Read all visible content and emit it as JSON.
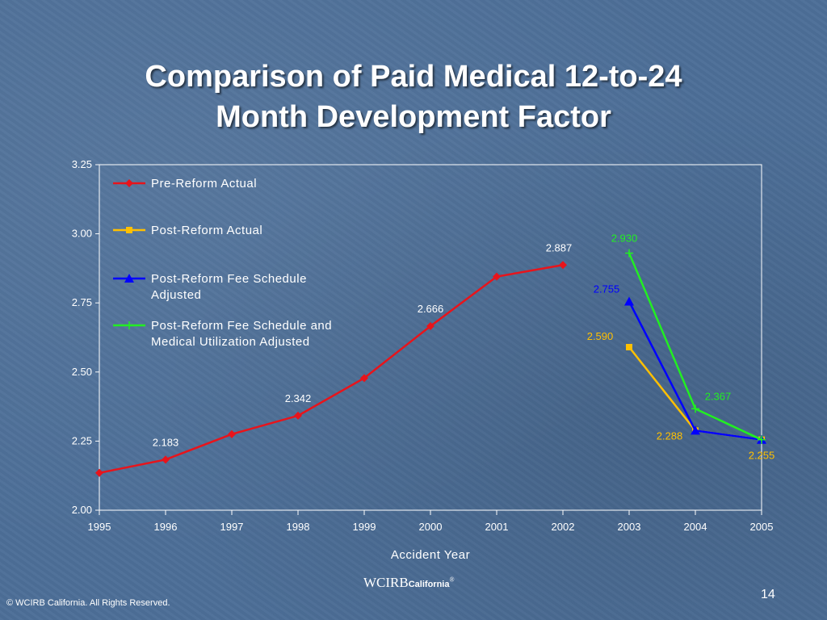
{
  "slide": {
    "title_lines": [
      "Comparison of Paid Medical 12-to-24",
      "Month Development Factor"
    ],
    "copyright": "© WCIRB California.  All Rights Reserved.",
    "logo": {
      "main": "WCIRB",
      "sub": "California",
      "mark": "®"
    },
    "page_number": "14"
  },
  "chart_data": {
    "type": "line",
    "x": [
      1995,
      1996,
      1997,
      1998,
      1999,
      2000,
      2001,
      2002,
      2003,
      2004,
      2005
    ],
    "xlabel": "Accident Year",
    "ylabel": "",
    "ylim": [
      2.0,
      3.25
    ],
    "yticks": [
      "2.00",
      "2.25",
      "2.50",
      "2.75",
      "3.00",
      "3.25"
    ],
    "legend_position": "top-left",
    "series": [
      {
        "name": "Pre-Reform Actual",
        "color": "#e8141b",
        "marker": "diamond",
        "points": [
          [
            1995,
            2.135
          ],
          [
            1996,
            2.183
          ],
          [
            1997,
            2.275
          ],
          [
            1998,
            2.342
          ],
          [
            1999,
            2.478
          ],
          [
            2000,
            2.666
          ],
          [
            2001,
            2.845
          ],
          [
            2002,
            2.887
          ]
        ],
        "labels": [
          {
            "x": 1996,
            "text": "2.183"
          },
          {
            "x": 1998,
            "text": "2.342"
          },
          {
            "x": 2000,
            "text": "2.666"
          },
          {
            "x": 2002,
            "text": "2.887"
          }
        ]
      },
      {
        "name": "Post-Reform Actual",
        "color": "#ffc000",
        "marker": "square",
        "points": [
          [
            2003,
            2.59
          ],
          [
            2004,
            2.288
          ],
          [
            2005,
            2.255
          ]
        ],
        "labels": [
          {
            "x": 2003,
            "text": "2.590"
          },
          {
            "x": 2004,
            "text": "2.288"
          },
          {
            "x": 2005,
            "text": "2.255"
          }
        ]
      },
      {
        "name": "Post-Reform Fee Schedule Adjusted",
        "color": "#0000ff",
        "marker": "triangle",
        "points": [
          [
            2003,
            2.755
          ],
          [
            2004,
            2.288
          ],
          [
            2005,
            2.255
          ]
        ],
        "labels": [
          {
            "x": 2003,
            "text": "2.755"
          }
        ]
      },
      {
        "name": "Post-Reform Fee Schedule and Medical Utilization Adjusted",
        "color": "#22ee22",
        "marker": "plus",
        "points": [
          [
            2003,
            2.93
          ],
          [
            2004,
            2.367
          ],
          [
            2005,
            2.255
          ]
        ],
        "labels": [
          {
            "x": 2003,
            "text": "2.930"
          },
          {
            "x": 2004,
            "text": "2.367"
          }
        ]
      }
    ]
  }
}
